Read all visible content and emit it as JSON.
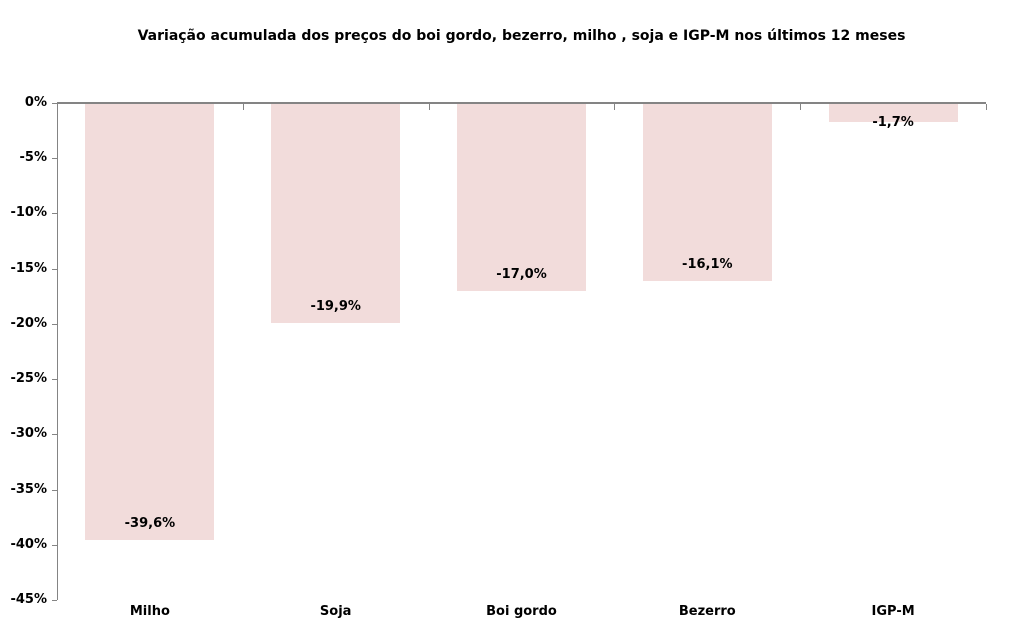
{
  "title": "Variação acumulada dos preços do boi gordo, bezerro, milho , soja e IGP-M nos últimos 12 meses",
  "chart_data": {
    "type": "bar",
    "title": "Variação acumulada dos preços do boi gordo, bezerro, milho , soja e IGP-M nos últimos 12 meses",
    "categories": [
      "Milho",
      "Soja",
      "Boi gordo",
      "Bezerro",
      "IGP-M"
    ],
    "values": [
      -39.6,
      -19.9,
      -17.0,
      -16.1,
      -1.7
    ],
    "value_labels": [
      "-39,6%",
      "-19,9%",
      "-17,0%",
      "-16,1%",
      "-1,7%"
    ],
    "xlabel": "",
    "ylabel": "",
    "ylim": [
      -45,
      0
    ],
    "ytick_step": 5,
    "ytick_labels": [
      "0%",
      "-5%",
      "-10%",
      "-15%",
      "-20%",
      "-25%",
      "-30%",
      "-35%",
      "-40%",
      "-45%"
    ],
    "grid": false,
    "legend": "none",
    "bar_color": "#F2DCDB",
    "axis_color": "#848484",
    "text_color": "#000000",
    "background_color": "#FFFFFF"
  }
}
